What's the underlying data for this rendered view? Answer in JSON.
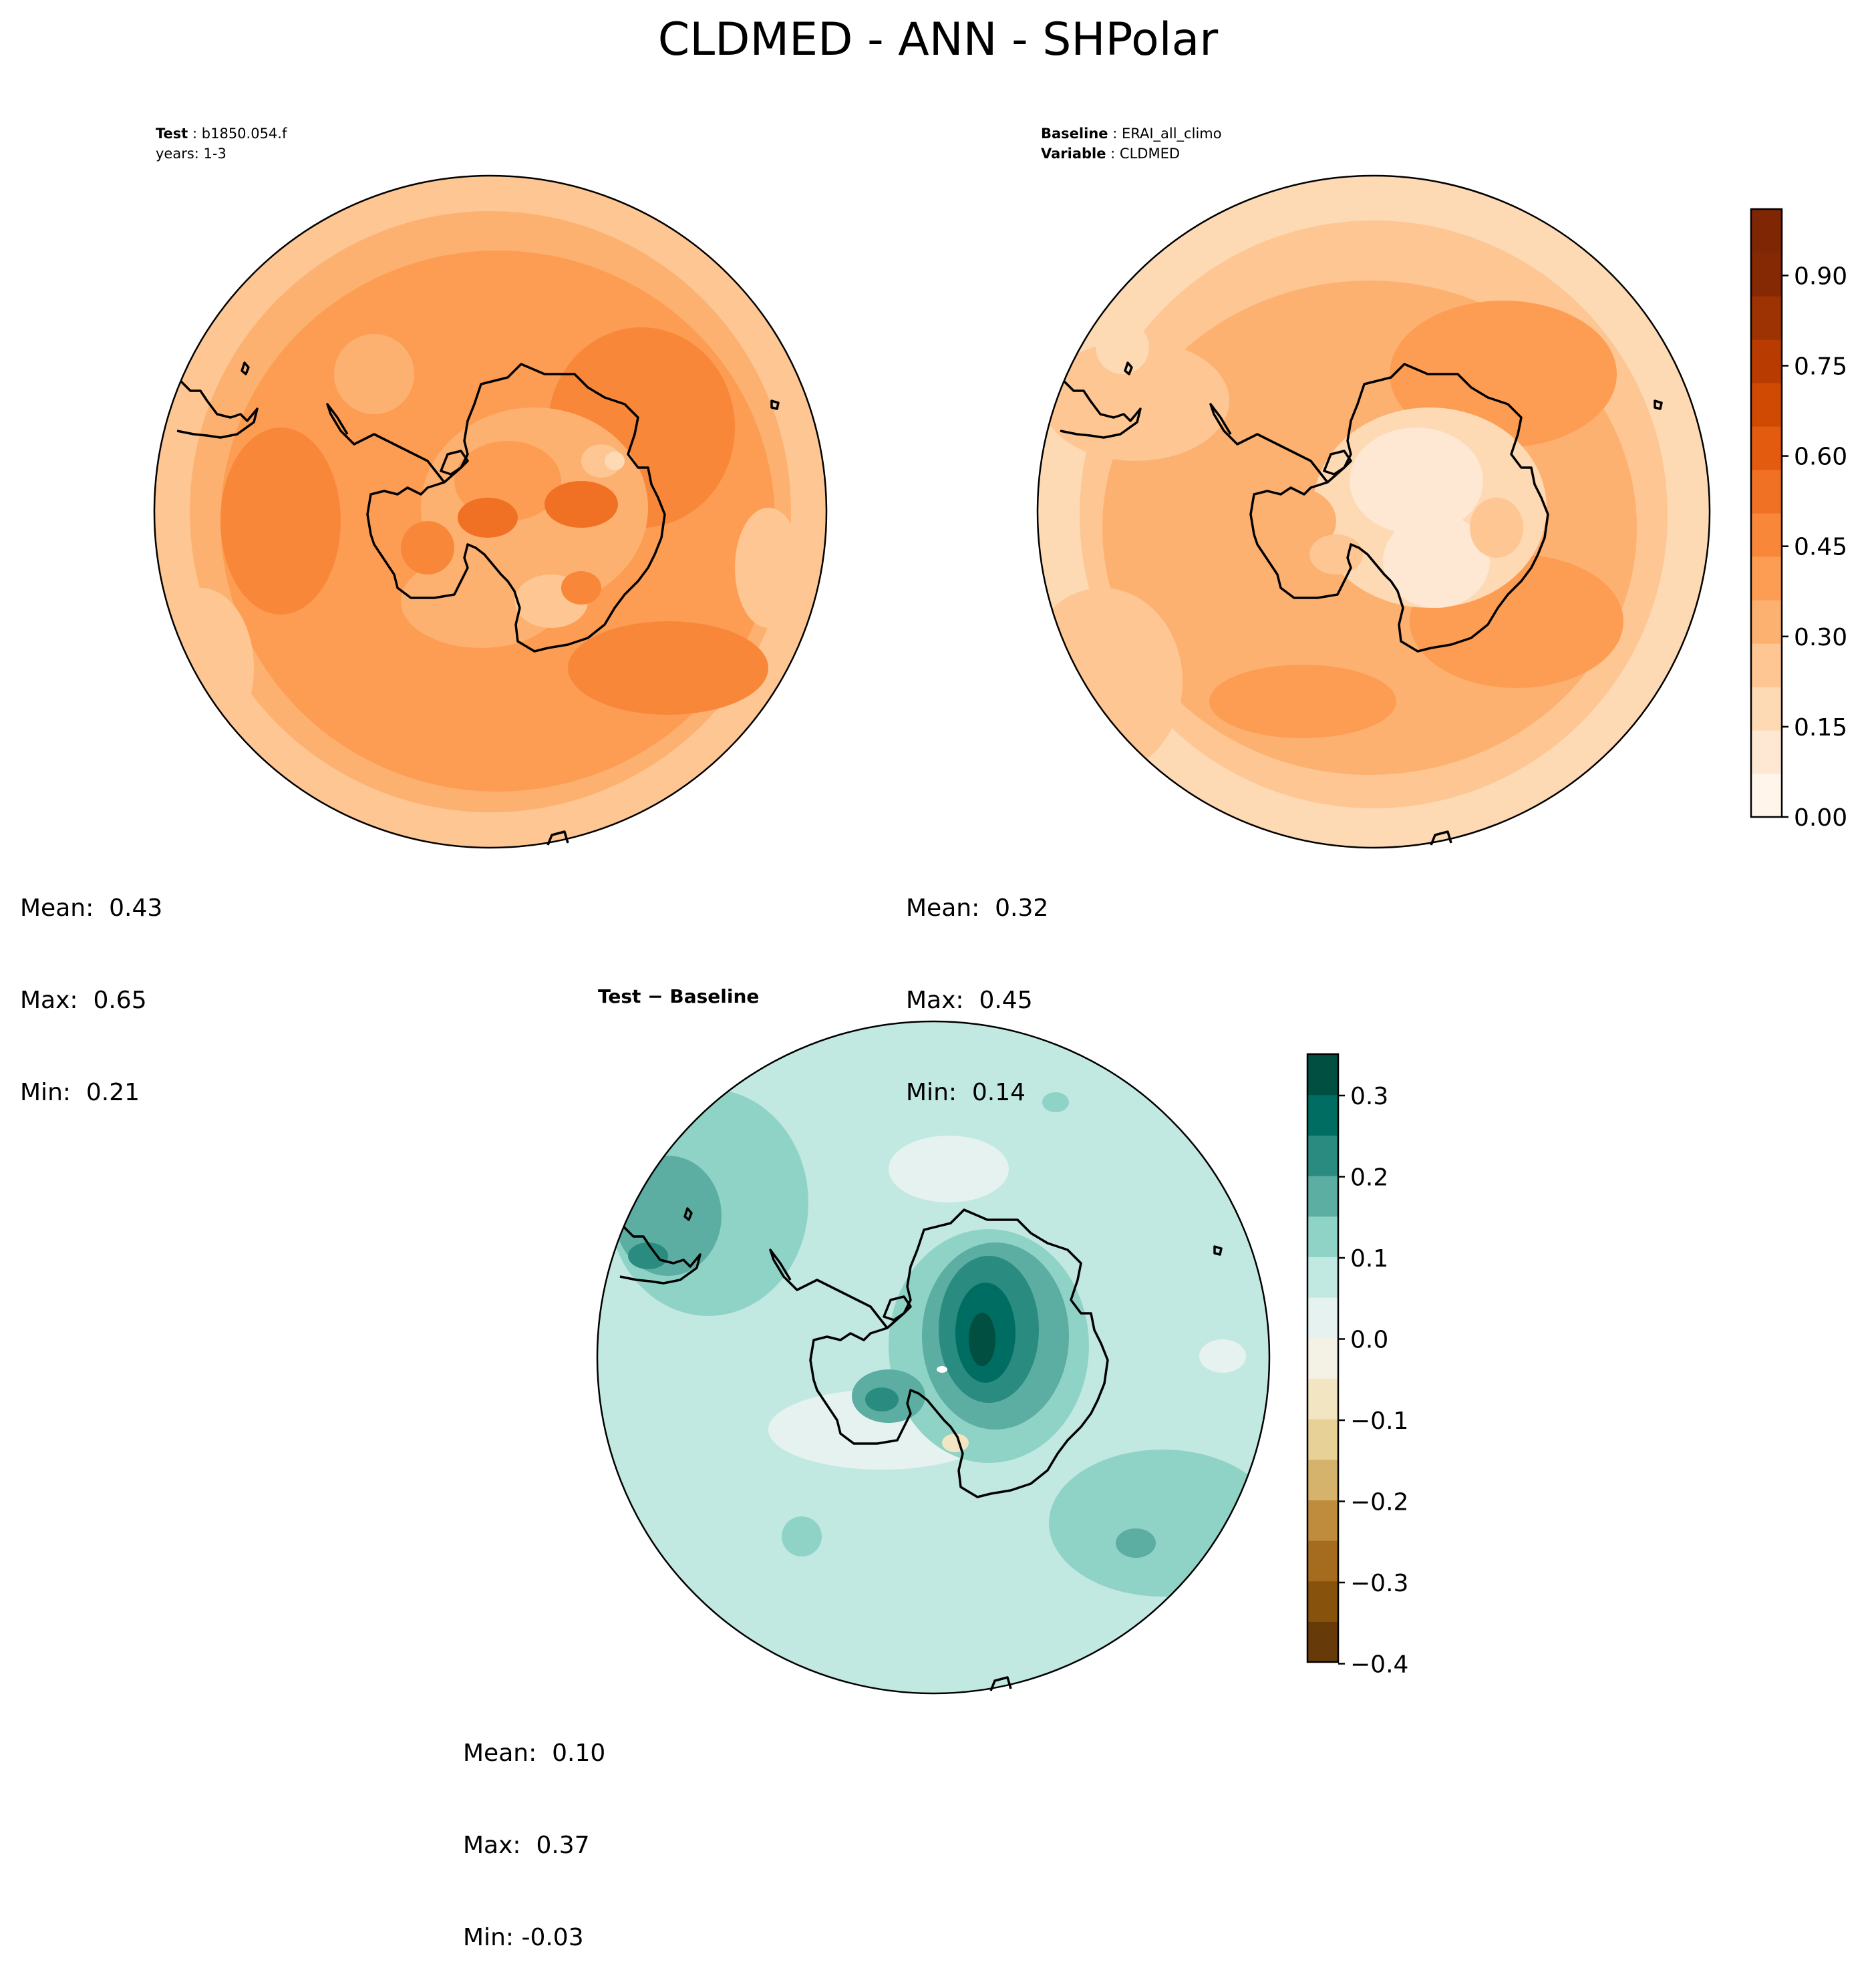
{
  "figure": {
    "title": "CLDMED - ANN - SHPolar"
  },
  "panels": {
    "test": {
      "label_bold": "Test",
      "label_value": "b1850.054.f",
      "years": "years: 1-3",
      "stats": {
        "mean": "Mean:  0.43",
        "max": "Max:  0.65",
        "min": "Min:  0.21"
      }
    },
    "baseline": {
      "label_bold": "Baseline",
      "label_value": "ERAI_all_climo",
      "variable_bold": "Variable",
      "variable_value": "CLDMED",
      "stats": {
        "mean": "Mean:  0.32",
        "max": "Max:  0.45",
        "min": "Min:  0.14"
      }
    },
    "diff": {
      "title": "Test − Baseline",
      "stats": {
        "mean": "Mean:  0.10",
        "max": "Max:  0.37",
        "min": "Min: -0.03"
      }
    }
  },
  "colorbars": {
    "main": {
      "ticks": [
        "0.00",
        "0.15",
        "0.30",
        "0.45",
        "0.60",
        "0.75",
        "0.90"
      ],
      "colors": [
        "#fff5eb",
        "#fee8d3",
        "#fdd9b4",
        "#fdc692",
        "#fdb170",
        "#fd9d53",
        "#f8873a",
        "#f07124",
        "#e35b0f",
        "#d14a04",
        "#b83c02",
        "#9d3203",
        "#852904",
        "#7f2704"
      ]
    },
    "diff": {
      "ticks": [
        "0.3",
        "0.2",
        "0.1",
        "0.0",
        "−0.1",
        "−0.2",
        "−0.3",
        "−0.4"
      ],
      "colors": [
        "#663a09",
        "#86520c",
        "#a56c1f",
        "#bf8c3e",
        "#d6b36c",
        "#e7d196",
        "#f2e5c1",
        "#f4f1e5",
        "#e6f2ef",
        "#c2e8e2",
        "#8fd3c7",
        "#5baea1",
        "#2a8b80",
        "#006d62",
        "#004f41"
      ]
    }
  }
}
